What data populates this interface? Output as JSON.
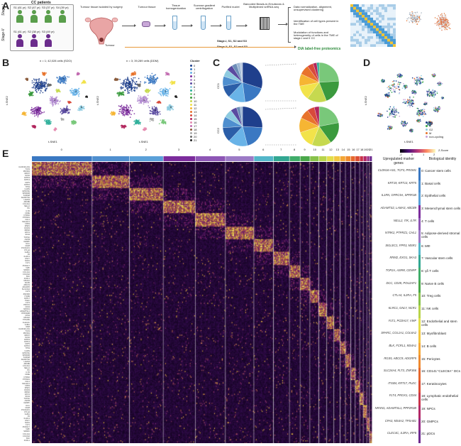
{
  "panel_letters": [
    "A",
    "B",
    "C",
    "D",
    "E"
  ],
  "panelA": {
    "cohort_title": "CC patients",
    "stage1_label": "Stage-I",
    "stage2_label": "Stage-II",
    "patients_stage1": [
      "S1 (61 yr)",
      "S2 (47 yr)",
      "S3 (37 yr)",
      "S4 (39 yr)"
    ],
    "patients_stage2": [
      "S1 (61 yr)",
      "S2 (38 yr)",
      "S3 (49 yr)"
    ],
    "tumour_label": "Tumour",
    "steps": [
      "Tumour tissue isolated by surgery",
      "Tumour tissue",
      "Tissue homogenization",
      "Sucrose gradient centrifugation",
      "Purified nuclei",
      "Barcoded Beads-in-Emulsions & Multiplexed snRNA-seq"
    ],
    "analysis_steps": [
      "Data normalization, alignment, unsupervised clustering",
      "Identification of cell types present in the TME",
      "Modulation of functions and heterogeneity of cells in the TME of stage-I and II CC"
    ],
    "stage_note_1": "Stage-I, S1, S2 and S3",
    "stage_note_2": "Stage-II, S1, S2 and S3",
    "proteomics": "DIA label-free proteomics"
  },
  "panelB": {
    "left_title": "n = 1; 42,028 cells (SDO)",
    "right_title": "n = 3; 39,289 cells (DDM)",
    "xlabel": "t-SNE1",
    "ylabel": "t-SNE2",
    "legend_title": "Cluster",
    "clusters": [
      "0",
      "1",
      "2",
      "3",
      "4",
      "5",
      "6",
      "7",
      "8",
      "9",
      "10",
      "11",
      "12",
      "13",
      "14",
      "15",
      "16",
      "17",
      "18",
      "19",
      "20",
      "21"
    ],
    "cluster_colors": [
      "#1f3f8c",
      "#3a78c2",
      "#69b3e7",
      "#7b2c9c",
      "#b089cf",
      "#5a4aa0",
      "#8ecbe0",
      "#2eaf9a",
      "#79c87a",
      "#3b9a3e",
      "#c6d94f",
      "#f2e34a",
      "#f6b533",
      "#e8732c",
      "#d84a3b",
      "#b2265d",
      "#e58cb0",
      "#c26bb0",
      "#8a5a3b",
      "#aaaaaa",
      "#6a6a6a",
      "#222222"
    ]
  },
  "panelC": {
    "row_labels": [
      "CC1",
      "CC2"
    ]
  },
  "panelD": {
    "legend": [
      {
        "label": "G1",
        "color": "#1f3f8c"
      },
      {
        "label": "S",
        "color": "#3eaa49"
      },
      {
        "label": "G2",
        "color": "#8ecbe0"
      },
      {
        "label": "M",
        "color": "#e8732c"
      },
      {
        "label": "non-cycling",
        "color": "#c6a0d8"
      }
    ],
    "xlabel": "t-SNE1",
    "ylabel": "t-SNE2"
  },
  "panelE": {
    "zscore_label": "Z-Score",
    "zscore_ticks": [
      "-2",
      "0",
      "1",
      "2"
    ],
    "header_upregulated": "Upregulated marker genes",
    "header_identity": "Biological identity",
    "clusters": [
      "0",
      "1",
      "2",
      "3",
      "4",
      "5",
      "6",
      "7",
      "8",
      "9",
      "10",
      "11",
      "12",
      "13",
      "14",
      "15",
      "16",
      "17",
      "18",
      "19",
      "20",
      "21"
    ],
    "markers": [
      "CLDN16-AS1, TCF3, PROM1",
      "KRT19, KRT13, KRT5",
      "IL1RN, GPRC5A, SPRR1B",
      "ADAMTS2, LAMA3, ABCB9",
      "NELL2, ITK, IL7R",
      "NTRK2, PTPRZ1, CHL1",
      "SIGLEC1, FPR3, MSR1",
      "RRM2, EXO1, SKA3",
      "TOP2A, ASPM, CENPF",
      "DCC, CD28, POU2AF1",
      "CTLA4, IL2RA, F5",
      "KLRC1, GNLY, NCR1",
      "FLT1, PCDH17, VWF",
      "SPARC, COL1A1, COL6A2",
      "BLK, FCRL1, MS4A1",
      "RGS5, ABCC9, ADGRF5",
      "SLC24A4, FLT3, ZNF366",
      "ITGB4, KRT17, PLEC",
      "FLT4, PROX1, CD34",
      "NRXN1, ADAMTSL1, PPP2R2B",
      "CPA3, MS4A2, TPSAB1",
      "CLEC4C, IL3RA, IRF8"
    ],
    "identities": [
      "0: Cancer stem cells",
      "1: Basal cells",
      "2: Epithelial cells",
      "3: Mesenchymal stem cells",
      "4: T cells",
      "5: Adipose-derived stromal cells",
      "6: MΦ",
      "7: Vascular stem cells",
      "8: γδ T cells",
      "9: Naïve B cells",
      "10: Treg cells",
      "11: NK cells",
      "12: Endothelial and stem cells",
      "13: Myofibroblast",
      "14: B cells",
      "15: Pericytes",
      "16: CD141⁺CLEC9A⁺ DCs",
      "17: Keratinocytes",
      "18: Lymphatic endothelial cells",
      "19: NPCs",
      "20: GMPCs",
      "21: pDCs"
    ],
    "cluster_colors": [
      "#3a78c2",
      "#4f8fcf",
      "#5aa0d8",
      "#7b2c9c",
      "#8d56b5",
      "#9c7ac6",
      "#53b6c9",
      "#32a792",
      "#40ad6a",
      "#4aa84a",
      "#88c24a",
      "#b8d44a",
      "#e3de4a",
      "#f2c640",
      "#f4a635",
      "#ef8a30",
      "#e6682e",
      "#dc4d33",
      "#c9344a",
      "#b32866",
      "#962a84",
      "#6d2a8f"
    ],
    "gene_labels": [
      "CLDN16-AS1",
      "TCF3",
      "PROM1",
      "MKI67",
      "SOX2",
      "KRT19",
      "KRT13",
      "KRT5",
      "KRT15",
      "TP63",
      "IL1RN",
      "GPRC5A",
      "SPRR1B",
      "S100A8",
      "ADAMTS2",
      "LAMA3",
      "ABCB9",
      "COL3A1",
      "NELL2",
      "ITK",
      "IL7R",
      "CD3E",
      "NTRK2",
      "PTPRZ1",
      "CHL1",
      "SIGLEC1",
      "FPR3",
      "MSR1",
      "CD163",
      "RRM2",
      "EXO1",
      "SKA3",
      "TOP2A",
      "ASPM",
      "CENPF",
      "DCC",
      "CD28",
      "POU2AF1",
      "CTLA4",
      "IL2RA",
      "F5",
      "KLRC1",
      "GNLY",
      "NCR1",
      "FLT1",
      "PCDH17",
      "VWF",
      "SPARC",
      "COL1A1",
      "COL6A2",
      "BLK",
      "FCRL1",
      "MS4A1",
      "RGS5",
      "ABCC9",
      "ADGRF5",
      "SLC24A4",
      "FLT3",
      "ZNF366",
      "ITGB4",
      "KRT17",
      "PLEC",
      "FLT4",
      "PROX1",
      "CD34",
      "NRXN1",
      "ADAMTSL1",
      "PPP2R2B",
      "CPA3",
      "MS4A2",
      "TPSAB1",
      "CLEC4C",
      "IL3RA",
      "IRF8"
    ]
  }
}
